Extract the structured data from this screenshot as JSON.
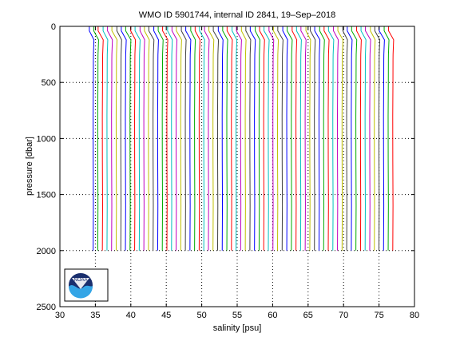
{
  "chart_data": {
    "type": "line",
    "title": "WMO ID 5901744, internal ID 2841, 19–Sep–2018",
    "xlabel": "salinity [psu]",
    "ylabel": "pressure [dbar]",
    "xlim": [
      30,
      80
    ],
    "ylim": [
      0,
      2500
    ],
    "y_reversed": true,
    "x_ticks": [
      30,
      35,
      40,
      45,
      50,
      55,
      60,
      65,
      70,
      75,
      80
    ],
    "y_ticks": [
      0,
      500,
      1000,
      1500,
      2000,
      2500
    ],
    "grid": "dotted",
    "profiles": {
      "count": 66,
      "first_offset_psu": 34.7,
      "offset_step_psu": 0.65,
      "surface_salinity_offset": -0.55,
      "max_pressure_dbar": 2000,
      "colors": [
        "#0000ff",
        "#00aa00",
        "#ff0000",
        "#00bfbf",
        "#bf00bf",
        "#bfbf00",
        "#404040"
      ]
    },
    "logo": {
      "name": "noaa-logo",
      "text": "NOAA",
      "position": "bottom-left"
    }
  },
  "colors": {
    "axes": "#000000",
    "grid": "#000000",
    "logo_dark": "#1a2f6e",
    "logo_light": "#34a5e6"
  }
}
